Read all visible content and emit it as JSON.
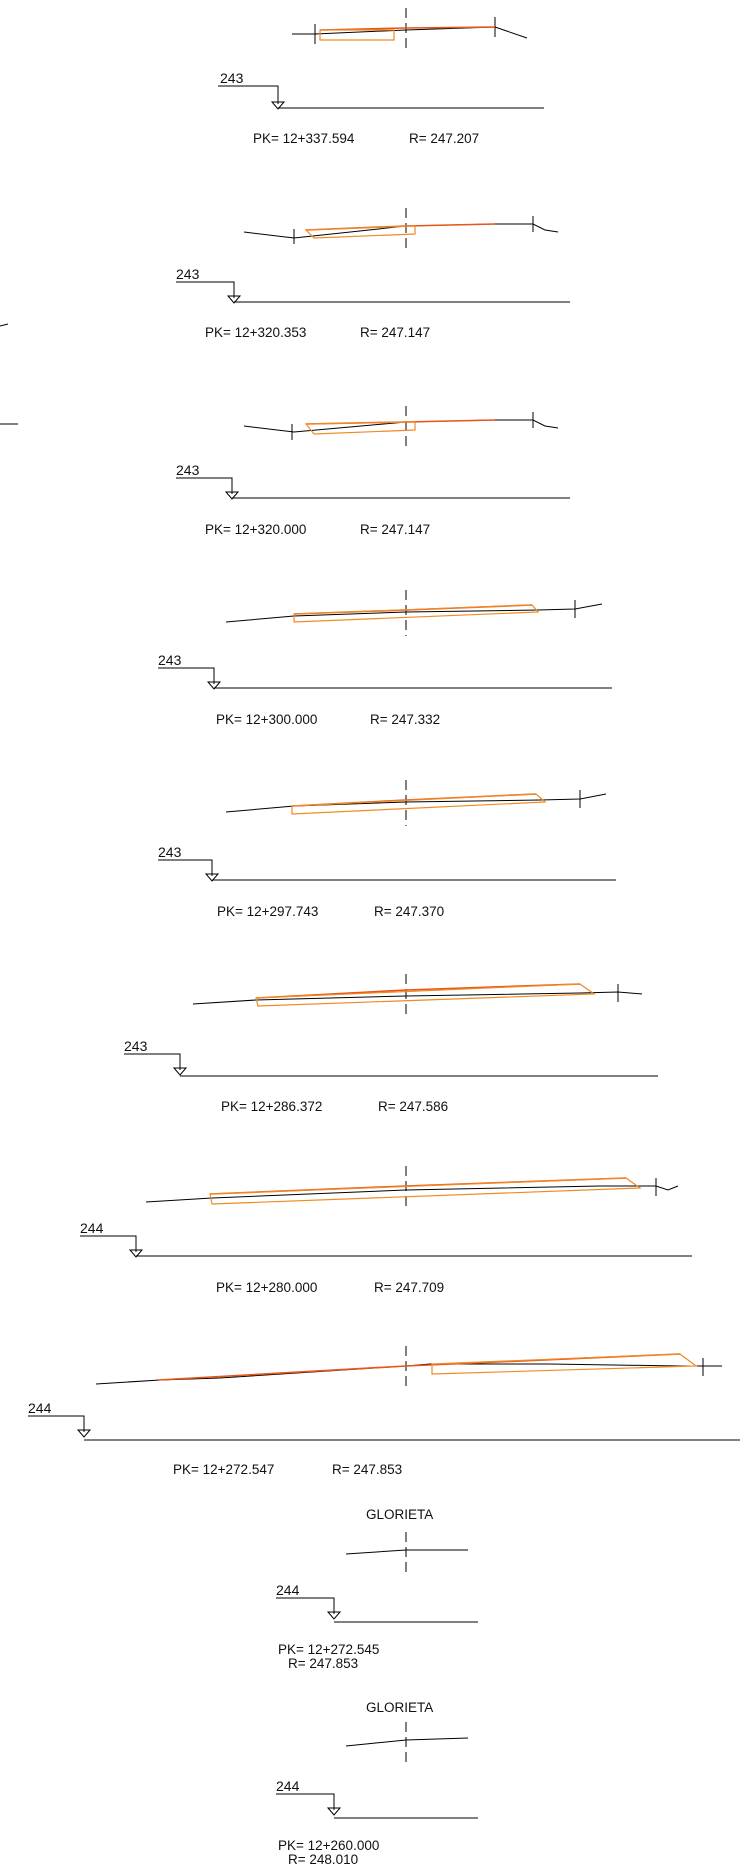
{
  "sections": [
    {
      "ref": "243",
      "pk": "PK= 12+337.594",
      "r": "R= 247.207"
    },
    {
      "ref": "243",
      "pk": "PK= 12+320.353",
      "r": "R= 247.147"
    },
    {
      "ref": "243",
      "pk": "PK= 12+320.000",
      "r": "R= 247.147"
    },
    {
      "ref": "243",
      "pk": "PK= 12+300.000",
      "r": "R= 247.332"
    },
    {
      "ref": "243",
      "pk": "PK= 12+297.743",
      "r": "R= 247.370"
    },
    {
      "ref": "243",
      "pk": "PK= 12+286.372",
      "r": "R= 247.586"
    },
    {
      "ref": "244",
      "pk": "PK= 12+280.000",
      "r": "R= 247.709"
    },
    {
      "ref": "244",
      "pk": "PK= 12+272.547",
      "r": "R= 247.853"
    },
    {
      "title": "GLORIETA",
      "ref": "244",
      "pk": "PK= 12+272.545",
      "r": "R= 247.853"
    },
    {
      "title": "GLORIETA",
      "ref": "244",
      "pk": "PK= 12+260.000",
      "r": "R= 248.010"
    }
  ],
  "colors": {
    "line": "#000000",
    "section_top": "#e8561a",
    "section_bottom": "#f08a24"
  }
}
